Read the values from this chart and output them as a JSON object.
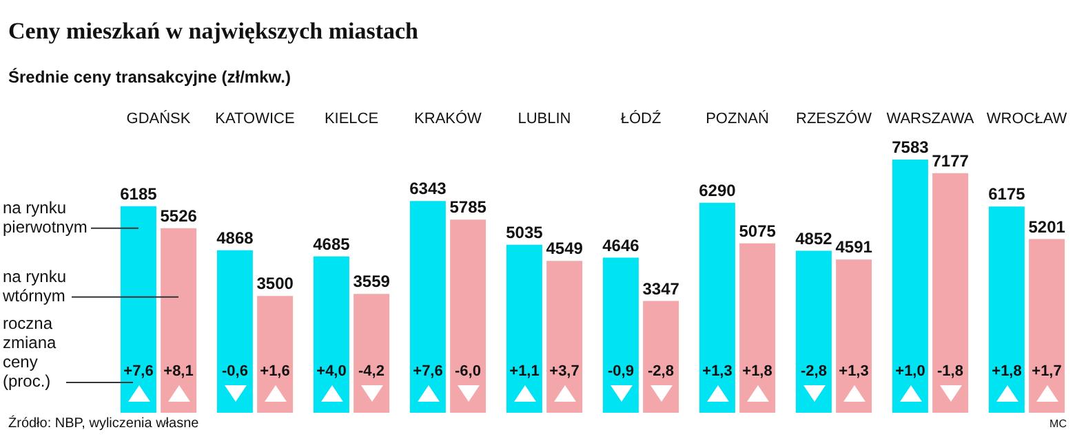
{
  "chart_data": {
    "type": "bar",
    "title": "Ceny mieszkań w największych miastach",
    "subtitle": "Średnie ceny transakcyjne (zł/mkw.)",
    "categories": [
      "GDAŃSK",
      "KATOWICE",
      "KIELCE",
      "KRAKÓW",
      "LUBLIN",
      "ŁÓDŹ",
      "POZNAŃ",
      "RZESZÓW",
      "WARSZAWA",
      "WROCŁAW"
    ],
    "series": [
      {
        "name": "na rynku pierwotnym",
        "color": "#00e3f2",
        "values": [
          6185,
          4868,
          4685,
          6343,
          5035,
          4646,
          6290,
          4852,
          7583,
          6175
        ]
      },
      {
        "name": "na rynku wtórnym",
        "color": "#f4a7aa",
        "values": [
          5526,
          3500,
          3559,
          5785,
          4549,
          3347,
          5075,
          4591,
          7177,
          5201
        ]
      }
    ],
    "data_labels": true,
    "legend": "left",
    "grid": false,
    "annotations": [
      {
        "text": "+7,6",
        "x": "GDAŃSK"
      },
      {
        "text": "+8,1",
        "x": "GDAŃSK"
      },
      {
        "text": "-0,6",
        "x": "KATOWICE"
      },
      {
        "text": "+1,6",
        "x": "KATOWICE"
      },
      {
        "text": "+4,0",
        "x": "KIELCE"
      },
      {
        "text": "-4,2",
        "x": "KIELCE"
      },
      {
        "text": "+7,6",
        "x": "KRAKÓW"
      },
      {
        "text": "-6,0",
        "x": "KRAKÓW"
      },
      {
        "text": "+1,1",
        "x": "LUBLIN"
      },
      {
        "text": "+3,7",
        "x": "LUBLIN"
      },
      {
        "text": "-0,9",
        "x": "ŁÓDŹ"
      },
      {
        "text": "-2,8",
        "x": "ŁÓDŹ"
      },
      {
        "text": "+1,3",
        "x": "POZNAŃ"
      },
      {
        "text": "+1,8",
        "x": "POZNAŃ"
      },
      {
        "text": "-2,8",
        "x": "RZESZÓW"
      },
      {
        "text": "+1,3",
        "x": "RZESZÓW"
      },
      {
        "text": "+1,0",
        "x": "WARSZAWA"
      },
      {
        "text": "-1,8",
        "x": "WARSZAWA"
      },
      {
        "text": "+1,8",
        "x": "WROCŁAW"
      },
      {
        "text": "+1,7",
        "x": "WROCŁAW"
      },
      "roczna zmiana ceny (proc.)",
      "Źródło: NBP, wyliczenia własne",
      "MC"
    ]
  }
}
